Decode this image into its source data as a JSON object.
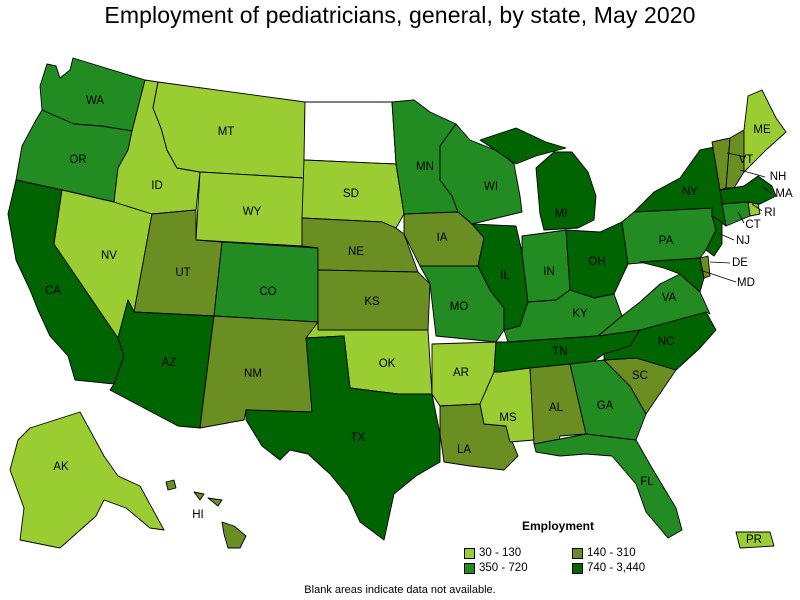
{
  "title": "Employment of pediatricians, general, by state, May 2020",
  "legend": {
    "title": "Employment",
    "items": [
      {
        "label": "30 - 130",
        "color": "#9acd32"
      },
      {
        "label": "140 - 310",
        "color": "#6b8e23"
      },
      {
        "label": "350 - 720",
        "color": "#228b22"
      },
      {
        "label": "740 - 3,440",
        "color": "#006400"
      }
    ]
  },
  "footnote": "Blank areas indicate data not available.",
  "colors": {
    "na": "#ffffff",
    "outline": "#000000"
  },
  "states": {
    "WA": {
      "label": "WA",
      "bin": 2
    },
    "OR": {
      "label": "OR",
      "bin": 2
    },
    "CA": {
      "label": "CA",
      "bin": 3
    },
    "NV": {
      "label": "NV",
      "bin": 0
    },
    "ID": {
      "label": "ID",
      "bin": 0
    },
    "MT": {
      "label": "MT",
      "bin": 0
    },
    "WY": {
      "label": "WY",
      "bin": 0
    },
    "UT": {
      "label": "UT",
      "bin": 1
    },
    "AZ": {
      "label": "AZ",
      "bin": 3
    },
    "CO": {
      "label": "CO",
      "bin": 2
    },
    "NM": {
      "label": "NM",
      "bin": 1
    },
    "ND": {
      "label": "",
      "bin": -1
    },
    "SD": {
      "label": "SD",
      "bin": 0
    },
    "NE": {
      "label": "NE",
      "bin": 1
    },
    "KS": {
      "label": "KS",
      "bin": 1
    },
    "OK": {
      "label": "OK",
      "bin": 0
    },
    "TX": {
      "label": "TX",
      "bin": 3
    },
    "MN": {
      "label": "MN",
      "bin": 2
    },
    "IA": {
      "label": "IA",
      "bin": 1
    },
    "MO": {
      "label": "MO",
      "bin": 2
    },
    "AR": {
      "label": "AR",
      "bin": 0
    },
    "LA": {
      "label": "LA",
      "bin": 1
    },
    "WI": {
      "label": "WI",
      "bin": 2
    },
    "IL": {
      "label": "IL",
      "bin": 3
    },
    "MI": {
      "label": "MI",
      "bin": 3
    },
    "IN": {
      "label": "IN",
      "bin": 2
    },
    "OH": {
      "label": "OH",
      "bin": 3
    },
    "KY": {
      "label": "KY",
      "bin": 2
    },
    "TN": {
      "label": "TN",
      "bin": 3
    },
    "MS": {
      "label": "MS",
      "bin": 0
    },
    "AL": {
      "label": "AL",
      "bin": 1
    },
    "GA": {
      "label": "GA",
      "bin": 2
    },
    "FL": {
      "label": "FL",
      "bin": 2
    },
    "SC": {
      "label": "SC",
      "bin": 1
    },
    "NC": {
      "label": "NC",
      "bin": 3
    },
    "VA": {
      "label": "VA",
      "bin": 2
    },
    "WV": {
      "label": "",
      "bin": -1
    },
    "PA": {
      "label": "PA",
      "bin": 2
    },
    "NY": {
      "label": "NY",
      "bin": 3
    },
    "VT": {
      "label": "VT",
      "bin": 1
    },
    "NH": {
      "label": "NH",
      "bin": 1
    },
    "ME": {
      "label": "ME",
      "bin": 0
    },
    "MA": {
      "label": "MA",
      "bin": 3
    },
    "RI": {
      "label": "RI",
      "bin": 0
    },
    "CT": {
      "label": "CT",
      "bin": 2
    },
    "NJ": {
      "label": "NJ",
      "bin": 3
    },
    "DE": {
      "label": "DE",
      "bin": 1
    },
    "MD": {
      "label": "MD",
      "bin": 3
    },
    "AK": {
      "label": "AK",
      "bin": 0
    },
    "HI": {
      "label": "HI",
      "bin": 1
    },
    "PR": {
      "label": "PR",
      "bin": 0
    }
  }
}
